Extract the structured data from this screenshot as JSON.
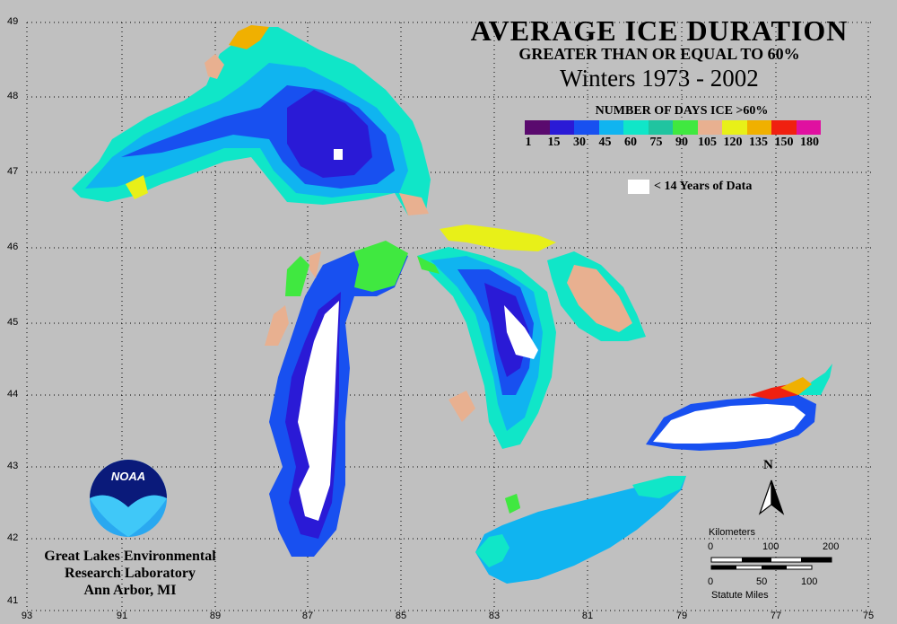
{
  "title": {
    "main": "AVERAGE ICE DURATION",
    "sub": "GREATER THAN OR EQUAL TO 60%",
    "period": "Winters 1973  - 2002"
  },
  "legend": {
    "title": "NUMBER OF DAYS ICE >60%",
    "colors": [
      "#5a0a6e",
      "#2a1ad6",
      "#1850f0",
      "#10b4f0",
      "#10e6c8",
      "#20c4a0",
      "#40e840",
      "#e8b090",
      "#e8f018",
      "#f0b000",
      "#f02010",
      "#e010a0"
    ],
    "ticks": [
      "1",
      "15",
      "30",
      "45",
      "60",
      "75",
      "90",
      "105",
      "120",
      "135",
      "150",
      "180"
    ],
    "no_data_label": "< 14 Years of Data"
  },
  "axes": {
    "latitudes": [
      "49",
      "48",
      "47",
      "46",
      "45",
      "44",
      "43",
      "42",
      "41"
    ],
    "longitudes": [
      "93",
      "91",
      "89",
      "87",
      "85",
      "83",
      "81",
      "79",
      "77",
      "75"
    ]
  },
  "credit": {
    "line1": "Great Lakes Environmental",
    "line2": "Research Laboratory",
    "line3": "Ann Arbor, MI"
  },
  "logo": {
    "text": "NOAA"
  },
  "scale_bar": {
    "km_label": "Kilometers",
    "km_ticks": [
      "0",
      "100",
      "200"
    ],
    "mi_label": "Statute Miles",
    "mi_ticks": [
      "0",
      "50",
      "100"
    ]
  },
  "north_arrow": {
    "label": "N"
  }
}
